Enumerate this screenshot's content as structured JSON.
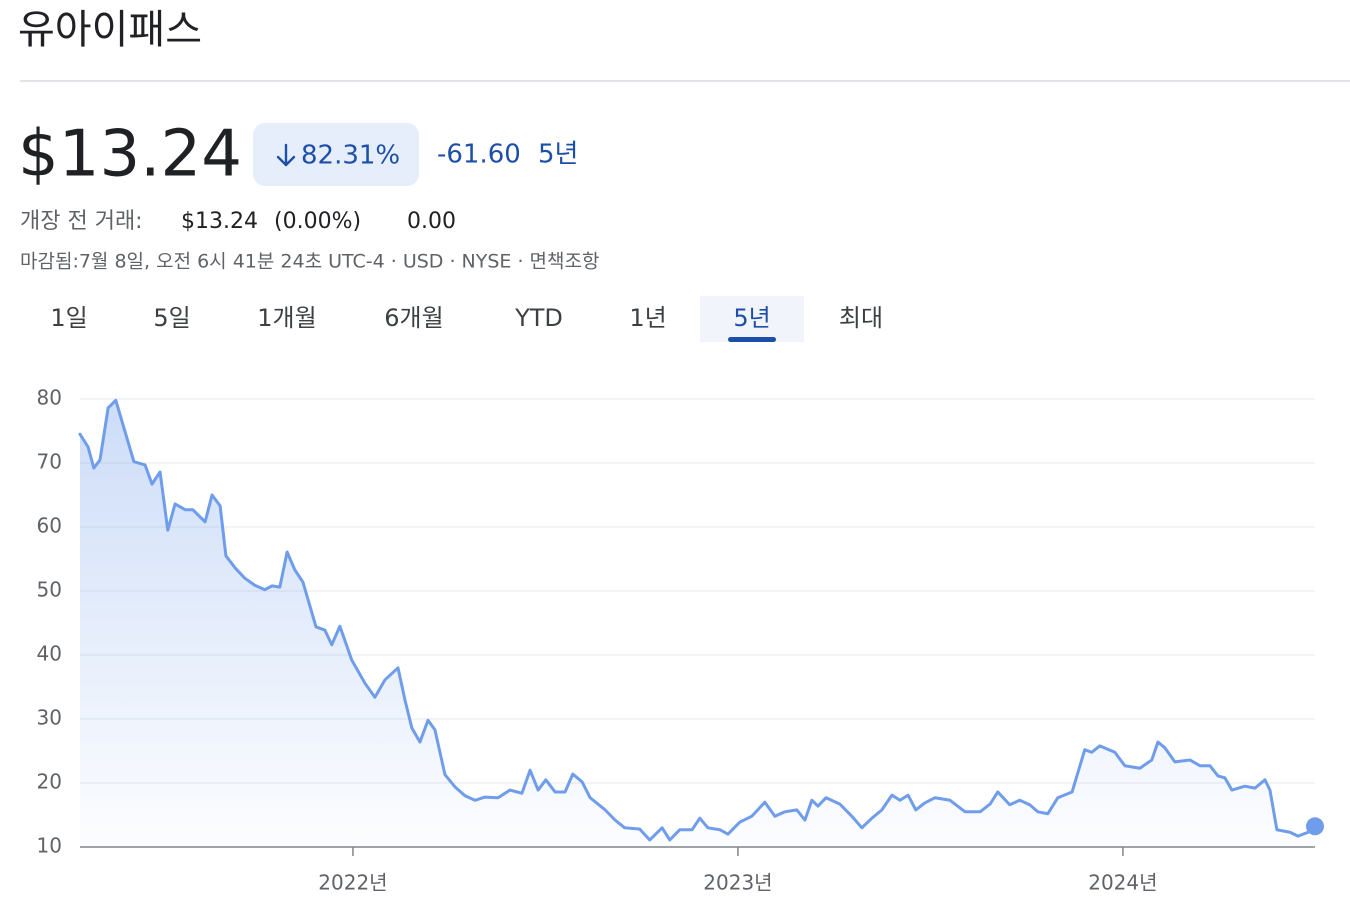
{
  "header": {
    "title": "유아이패스"
  },
  "quote": {
    "price": "$13.24",
    "change_percent": "82.31%",
    "change": "-61.60",
    "period": "5년",
    "premarket_label": "개장 전 거래:",
    "premarket_price": "$13.24",
    "premarket_percent": "(0.00%)",
    "premarket_change": "0.00",
    "info": "마감됨:7월 8일, 오전 6시 41분 24초 UTC-4 · USD · NYSE · 면책조항"
  },
  "tabs": {
    "items": [
      "1일",
      "5일",
      "1개월",
      "6개월",
      "YTD",
      "1년",
      "5년",
      "최대"
    ],
    "selected": 6
  },
  "chart_data": {
    "type": "line",
    "color": "#6f9deb",
    "area": true,
    "grid": true,
    "end_marker": true,
    "x": [
      2021.291,
      2021.312,
      2021.327,
      2021.343,
      2021.364,
      2021.384,
      2021.405,
      2021.431,
      2021.46,
      2021.478,
      2021.499,
      2021.519,
      2021.538,
      2021.564,
      2021.584,
      2021.616,
      2021.634,
      2021.655,
      2021.67,
      2021.694,
      2021.719,
      2021.745,
      2021.771,
      2021.79,
      2021.81,
      2021.829,
      2021.849,
      2021.87,
      2021.904,
      2021.927,
      2021.945,
      2021.966,
      2021.997,
      2022.031,
      2022.057,
      2022.083,
      2022.117,
      2022.135,
      2022.153,
      2022.174,
      2022.195,
      2022.213,
      2022.239,
      2022.265,
      2022.291,
      2022.317,
      2022.343,
      2022.377,
      2022.408,
      2022.439,
      2022.46,
      2022.481,
      2022.501,
      2022.525,
      2022.551,
      2022.571,
      2022.595,
      2022.616,
      2022.655,
      2022.681,
      2022.706,
      2022.745,
      2022.771,
      2022.803,
      2022.823,
      2022.849,
      2022.881,
      2022.901,
      2022.922,
      2022.953,
      2022.974,
      2023.005,
      2023.036,
      2023.07,
      2023.096,
      2023.122,
      2023.153,
      2023.174,
      2023.192,
      2023.208,
      2023.229,
      2023.265,
      2023.296,
      2023.322,
      2023.348,
      2023.374,
      2023.4,
      2023.421,
      2023.442,
      2023.462,
      2023.486,
      2023.512,
      2023.551,
      2023.59,
      2023.629,
      2023.655,
      2023.675,
      2023.706,
      2023.732,
      2023.758,
      2023.779,
      2023.805,
      2023.831,
      2023.868,
      2023.901,
      2023.919,
      2023.94,
      2023.979,
      2024.005,
      2024.044,
      2024.075,
      2024.091,
      2024.109,
      2024.135,
      2024.174,
      2024.2,
      2024.226,
      2024.247,
      2024.265,
      2024.283,
      2024.317,
      2024.343,
      2024.369,
      2024.382,
      2024.4,
      2024.434,
      2024.455,
      2024.481,
      2024.499
    ],
    "values": [
      74.5,
      72.5,
      69.2,
      70.5,
      78.6,
      79.8,
      75.5,
      70.2,
      69.7,
      66.7,
      68.6,
      59.5,
      63.6,
      62.7,
      62.7,
      60.8,
      65,
      63.3,
      55.5,
      53.6,
      52,
      50.9,
      50.2,
      50.8,
      50.6,
      56.1,
      53.3,
      51.4,
      44.4,
      43.9,
      41.6,
      44.5,
      39.2,
      35.6,
      33.4,
      36.1,
      38,
      33,
      28.6,
      26.4,
      29.8,
      28.3,
      21.3,
      19.4,
      18,
      17.3,
      17.8,
      17.7,
      18.9,
      18.4,
      22,
      18.9,
      20.5,
      18.6,
      18.6,
      21.4,
      20.2,
      17.7,
      15.8,
      14.2,
      13,
      12.8,
      11.1,
      13,
      11.1,
      12.7,
      12.7,
      14.5,
      13,
      12.7,
      12,
      13.9,
      14.8,
      17,
      14.8,
      15.5,
      15.8,
      14.2,
      17.3,
      16.4,
      17.7,
      16.7,
      14.8,
      13,
      14.5,
      15.8,
      18.1,
      17.3,
      18.1,
      15.8,
      16.9,
      17.7,
      17.3,
      15.5,
      15.5,
      16.7,
      18.6,
      16.6,
      17.3,
      16.6,
      15.5,
      15.2,
      17.7,
      18.6,
      25.2,
      24.8,
      25.8,
      24.8,
      22.7,
      22.3,
      23.6,
      26.4,
      25.5,
      23.3,
      23.6,
      22.7,
      22.7,
      21.1,
      20.8,
      18.9,
      19.5,
      19.2,
      20.5,
      18.9,
      12.7,
      12.3,
      11.7,
      12.3,
      13.24
    ],
    "xlim": [
      2021.291,
      2024.499
    ],
    "xticks": [
      {
        "value": 2022,
        "label": "2022년"
      },
      {
        "value": 2023,
        "label": "2023년"
      },
      {
        "value": 2024,
        "label": "2024년"
      }
    ],
    "ylim": [
      10,
      80
    ],
    "yticks": [
      10,
      20,
      30,
      40,
      50,
      60,
      70,
      80
    ]
  }
}
